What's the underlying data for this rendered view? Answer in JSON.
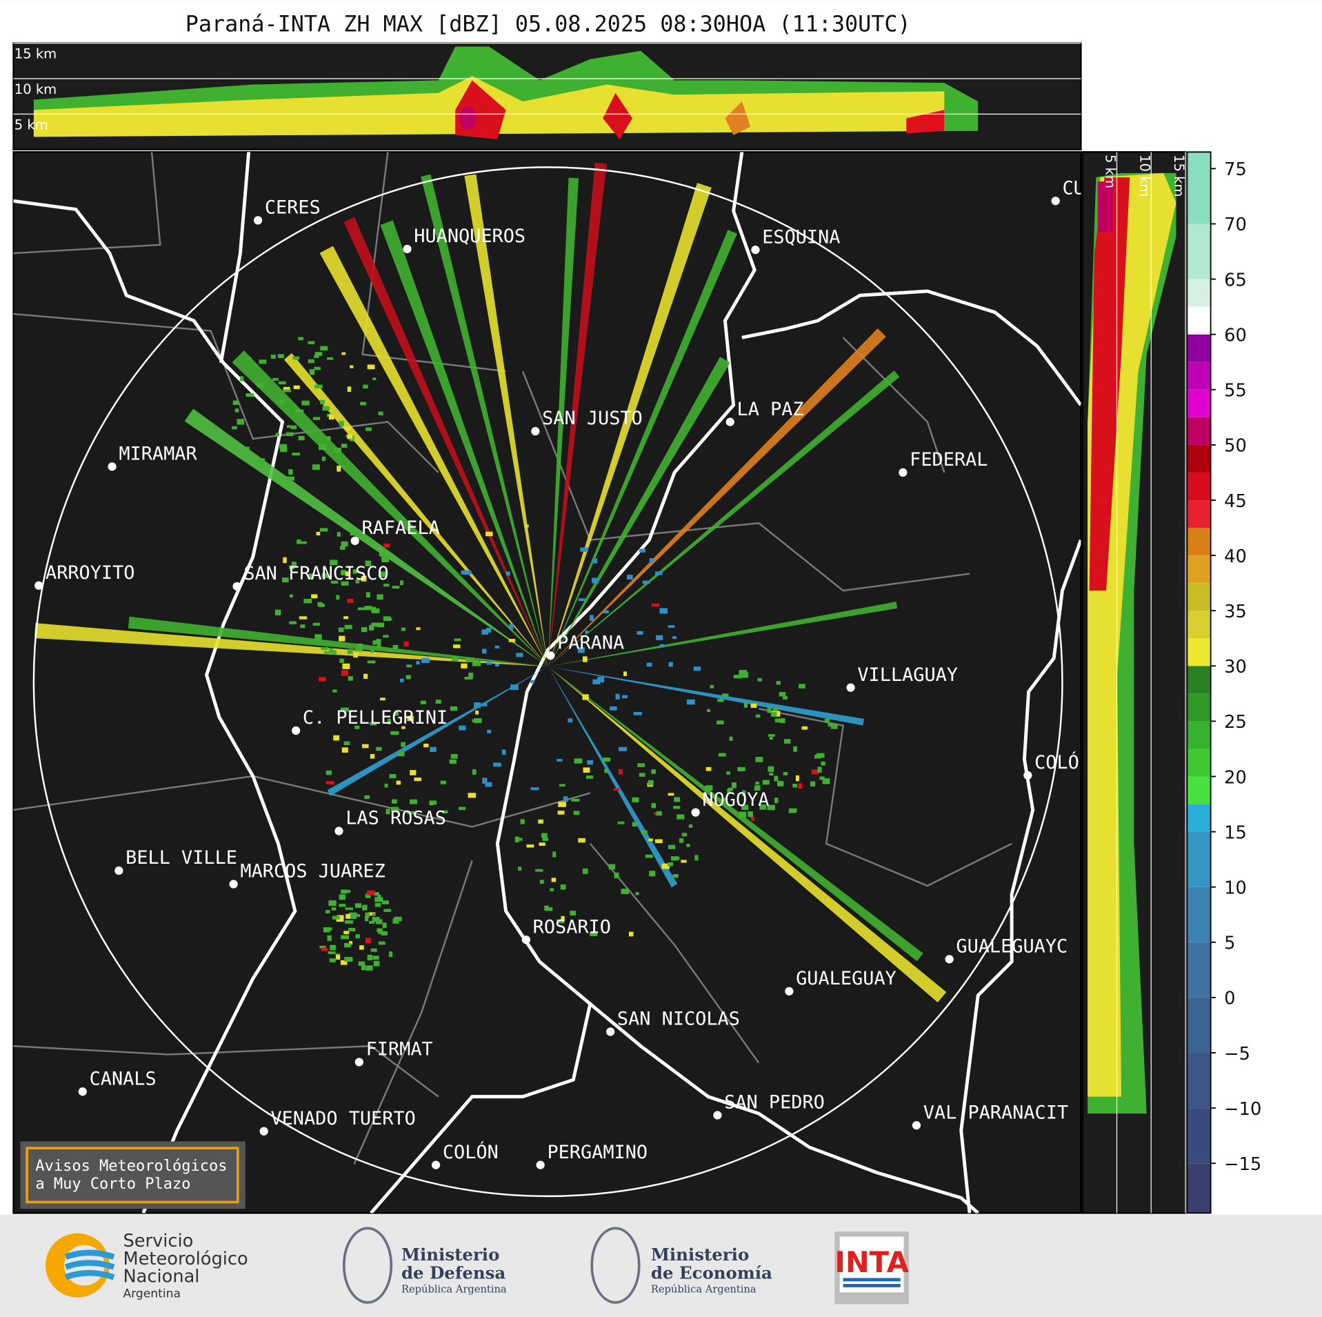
{
  "title": "Paraná-INTA ZH MAX [dBZ] 05.08.2025 08:30HOA (11:30UTC)",
  "profile_axis": {
    "lim": [
      0,
      15
    ],
    "ticks": [
      {
        "value": 15,
        "label": "15 km"
      },
      {
        "value": 10,
        "label": "10 km"
      },
      {
        "value": 5,
        "label": "5 km"
      }
    ]
  },
  "colorbar": {
    "lim": [
      -19.5,
      76.5
    ],
    "ticks": [
      75,
      70,
      65,
      60,
      55,
      50,
      45,
      40,
      35,
      30,
      25,
      20,
      15,
      10,
      5,
      0,
      {
        "value": -5,
        "label": "−5"
      },
      {
        "value": -10,
        "label": "−10"
      },
      {
        "value": -15,
        "label": "−15"
      }
    ],
    "edges": [
      -19.5,
      -15,
      -10,
      -5,
      0,
      5,
      10,
      15,
      17.5,
      20,
      22.5,
      25,
      27.5,
      30,
      32.5,
      35,
      37.5,
      40,
      42.5,
      45,
      47.5,
      50,
      52.5,
      55,
      57.5,
      60,
      62.5,
      65,
      70,
      76.5
    ],
    "colors": [
      "#3a3f6e",
      "#3b4a7c",
      "#3d5688",
      "#3e6494",
      "#3f72a0",
      "#3b82b0",
      "#3596c4",
      "#2aaed8",
      "#48e03c",
      "#40c834",
      "#38b030",
      "#309828",
      "#2a8022",
      "#ece830",
      "#d8d030",
      "#c8bc28",
      "#e0a020",
      "#d88018",
      "#e82030",
      "#d80c20",
      "#b00010",
      "#c00060",
      "#e000d0",
      "#c000b8",
      "#9000a0",
      "#ffffff",
      "#d8f0e4",
      "#b0e8d0",
      "#8cdcc0"
    ]
  },
  "cities": [
    {
      "label": "CERES"
    },
    {
      "label": "HUANQUEROS"
    },
    {
      "label": "ESQUINA"
    },
    {
      "label": "CU"
    },
    {
      "label": "SAN JUSTO"
    },
    {
      "label": "LA PAZ"
    },
    {
      "label": "MIRAMAR"
    },
    {
      "label": "FEDERAL"
    },
    {
      "label": "RAFAELA"
    },
    {
      "label": "ARROYITO"
    },
    {
      "label": "SAN FRANCISCO"
    },
    {
      "label": "PARANA"
    },
    {
      "label": "VILLAGUAY"
    },
    {
      "label": "C. PELLEGRINI"
    },
    {
      "label": "COLÓ"
    },
    {
      "label": "NOGOYA"
    },
    {
      "label": "LAS ROSAS"
    },
    {
      "label": "BELL VILLE"
    },
    {
      "label": "MARCOS JUAREZ"
    },
    {
      "label": "ROSARIO"
    },
    {
      "label": "GUALEGUAYC"
    },
    {
      "label": "GUALEGUAY"
    },
    {
      "label": "SAN NICOLAS"
    },
    {
      "label": "FIRMAT"
    },
    {
      "label": "CANALS"
    },
    {
      "label": "SAN PEDRO"
    },
    {
      "label": "VAL PARANACIT"
    },
    {
      "label": "VENADO TUERTO"
    },
    {
      "label": "COLÓN"
    },
    {
      "label": "PERGAMINO"
    }
  ],
  "notice": {
    "lines": [
      "Avisos Meteorológicos",
      "a Muy Corto Plazo"
    ]
  },
  "logos": {
    "smn": {
      "lines": [
        "Servicio",
        "Meteorológico",
        "Nacional"
      ],
      "country": "Argentina"
    },
    "defensa": {
      "lines": [
        "Ministerio",
        "de Defensa"
      ],
      "country": "República Argentina"
    },
    "economia": {
      "lines": [
        "Ministerio",
        "de Economía"
      ],
      "country": "República Argentina"
    },
    "inta": "INTA"
  }
}
